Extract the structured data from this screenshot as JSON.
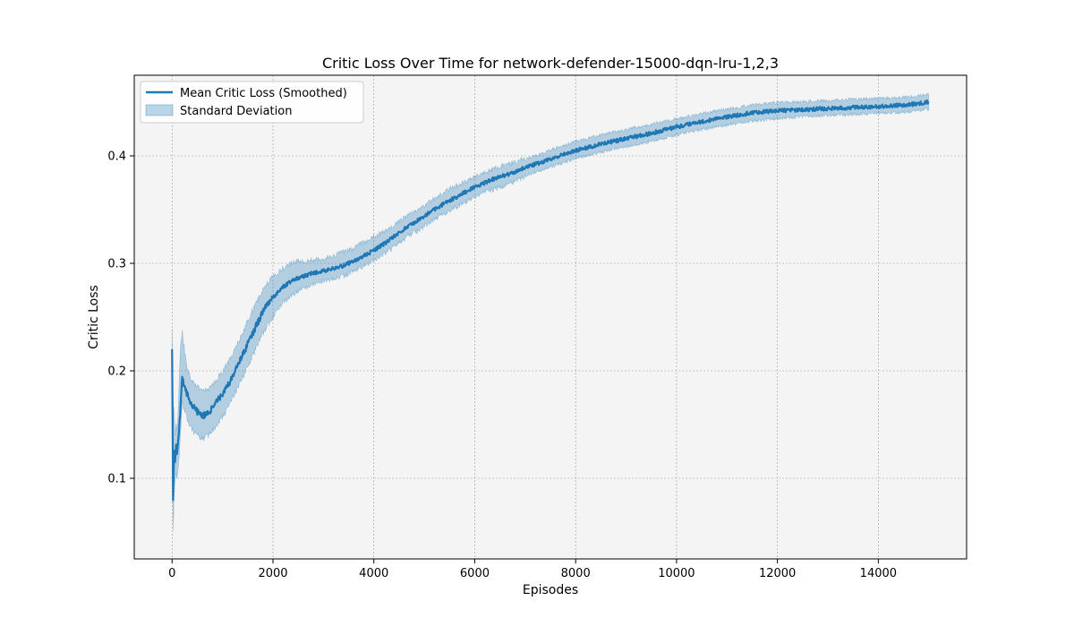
{
  "chart_data": {
    "type": "line",
    "title": "Critic Loss Over Time for network-defender-15000-dqn-lru-1,2,3",
    "xlabel": "Episodes",
    "ylabel": "Critic Loss",
    "xlim": [
      -750,
      15750
    ],
    "ylim": [
      0.025,
      0.475
    ],
    "xticks": [
      0,
      2000,
      4000,
      6000,
      8000,
      10000,
      12000,
      14000
    ],
    "xtick_labels": [
      "0",
      "2000",
      "4000",
      "6000",
      "8000",
      "10000",
      "12000",
      "14000"
    ],
    "yticks": [
      0.1,
      0.2,
      0.3,
      0.4
    ],
    "ytick_labels": [
      "0.1",
      "0.2",
      "0.3",
      "0.4"
    ],
    "grid": true,
    "legend_position": "top-left",
    "colors": {
      "line": "#1f77b4",
      "band": "#a9c8e2",
      "plot_bg": "#f4f4f4",
      "grid": "#9a9a9a"
    },
    "series": [
      {
        "name": "Mean Critic Loss (Smoothed)",
        "kind": "line",
        "x": [
          0,
          20,
          40,
          60,
          80,
          100,
          130,
          160,
          200,
          250,
          300,
          350,
          400,
          450,
          500,
          600,
          700,
          800,
          900,
          1000,
          1100,
          1200,
          1300,
          1400,
          1500,
          1600,
          1700,
          1800,
          1900,
          2000,
          2200,
          2400,
          2600,
          2800,
          3000,
          3200,
          3400,
          3600,
          3800,
          4000,
          4200,
          4400,
          4600,
          4800,
          5000,
          5200,
          5400,
          5600,
          5800,
          6000,
          6200,
          6400,
          6600,
          6800,
          7000,
          7500,
          8000,
          8500,
          9000,
          9500,
          10000,
          10500,
          11000,
          11500,
          12000,
          12500,
          13000,
          13500,
          14000,
          14500,
          15000
        ],
        "values": [
          0.222,
          0.08,
          0.128,
          0.118,
          0.13,
          0.12,
          0.14,
          0.16,
          0.195,
          0.184,
          0.178,
          0.172,
          0.168,
          0.165,
          0.162,
          0.158,
          0.16,
          0.165,
          0.172,
          0.178,
          0.186,
          0.195,
          0.205,
          0.215,
          0.225,
          0.235,
          0.245,
          0.255,
          0.262,
          0.268,
          0.278,
          0.285,
          0.288,
          0.291,
          0.293,
          0.295,
          0.298,
          0.302,
          0.307,
          0.312,
          0.318,
          0.325,
          0.332,
          0.338,
          0.344,
          0.35,
          0.356,
          0.361,
          0.366,
          0.371,
          0.375,
          0.379,
          0.382,
          0.385,
          0.389,
          0.397,
          0.405,
          0.411,
          0.416,
          0.421,
          0.427,
          0.432,
          0.436,
          0.44,
          0.442,
          0.443,
          0.444,
          0.445,
          0.446,
          0.447,
          0.45
        ]
      },
      {
        "name": "Standard Deviation",
        "kind": "band",
        "x": [
          0,
          20,
          40,
          60,
          80,
          100,
          130,
          160,
          200,
          250,
          300,
          350,
          400,
          450,
          500,
          600,
          700,
          800,
          900,
          1000,
          1100,
          1200,
          1300,
          1400,
          1500,
          1600,
          1700,
          1800,
          1900,
          2000,
          2200,
          2400,
          2600,
          2800,
          3000,
          3200,
          3400,
          3600,
          3800,
          4000,
          4200,
          4400,
          4600,
          4800,
          5000,
          5200,
          5400,
          5600,
          5800,
          6000,
          6200,
          6400,
          6600,
          6800,
          7000,
          7500,
          8000,
          8500,
          9000,
          9500,
          10000,
          10500,
          11000,
          11500,
          12000,
          12500,
          13000,
          13500,
          14000,
          14500,
          15000
        ],
        "lower": [
          0.15,
          0.043,
          0.095,
          0.1,
          0.11,
          0.1,
          0.118,
          0.14,
          0.175,
          0.165,
          0.158,
          0.152,
          0.148,
          0.145,
          0.143,
          0.14,
          0.142,
          0.147,
          0.154,
          0.16,
          0.168,
          0.177,
          0.187,
          0.197,
          0.207,
          0.217,
          0.228,
          0.238,
          0.246,
          0.252,
          0.266,
          0.274,
          0.279,
          0.283,
          0.286,
          0.288,
          0.291,
          0.295,
          0.3,
          0.305,
          0.311,
          0.318,
          0.325,
          0.331,
          0.337,
          0.343,
          0.349,
          0.354,
          0.359,
          0.364,
          0.368,
          0.372,
          0.375,
          0.379,
          0.383,
          0.391,
          0.399,
          0.405,
          0.41,
          0.415,
          0.421,
          0.426,
          0.43,
          0.434,
          0.436,
          0.438,
          0.439,
          0.44,
          0.441,
          0.442,
          0.445
        ],
        "upper": [
          0.235,
          0.16,
          0.165,
          0.14,
          0.15,
          0.14,
          0.17,
          0.215,
          0.235,
          0.215,
          0.2,
          0.192,
          0.188,
          0.184,
          0.182,
          0.178,
          0.18,
          0.184,
          0.19,
          0.196,
          0.204,
          0.213,
          0.223,
          0.233,
          0.243,
          0.254,
          0.263,
          0.272,
          0.279,
          0.285,
          0.293,
          0.299,
          0.3,
          0.301,
          0.302,
          0.305,
          0.308,
          0.312,
          0.317,
          0.322,
          0.327,
          0.333,
          0.34,
          0.346,
          0.352,
          0.358,
          0.364,
          0.369,
          0.373,
          0.378,
          0.382,
          0.386,
          0.389,
          0.392,
          0.395,
          0.404,
          0.412,
          0.418,
          0.423,
          0.428,
          0.433,
          0.438,
          0.442,
          0.446,
          0.448,
          0.449,
          0.45,
          0.451,
          0.452,
          0.453,
          0.456
        ]
      }
    ]
  }
}
